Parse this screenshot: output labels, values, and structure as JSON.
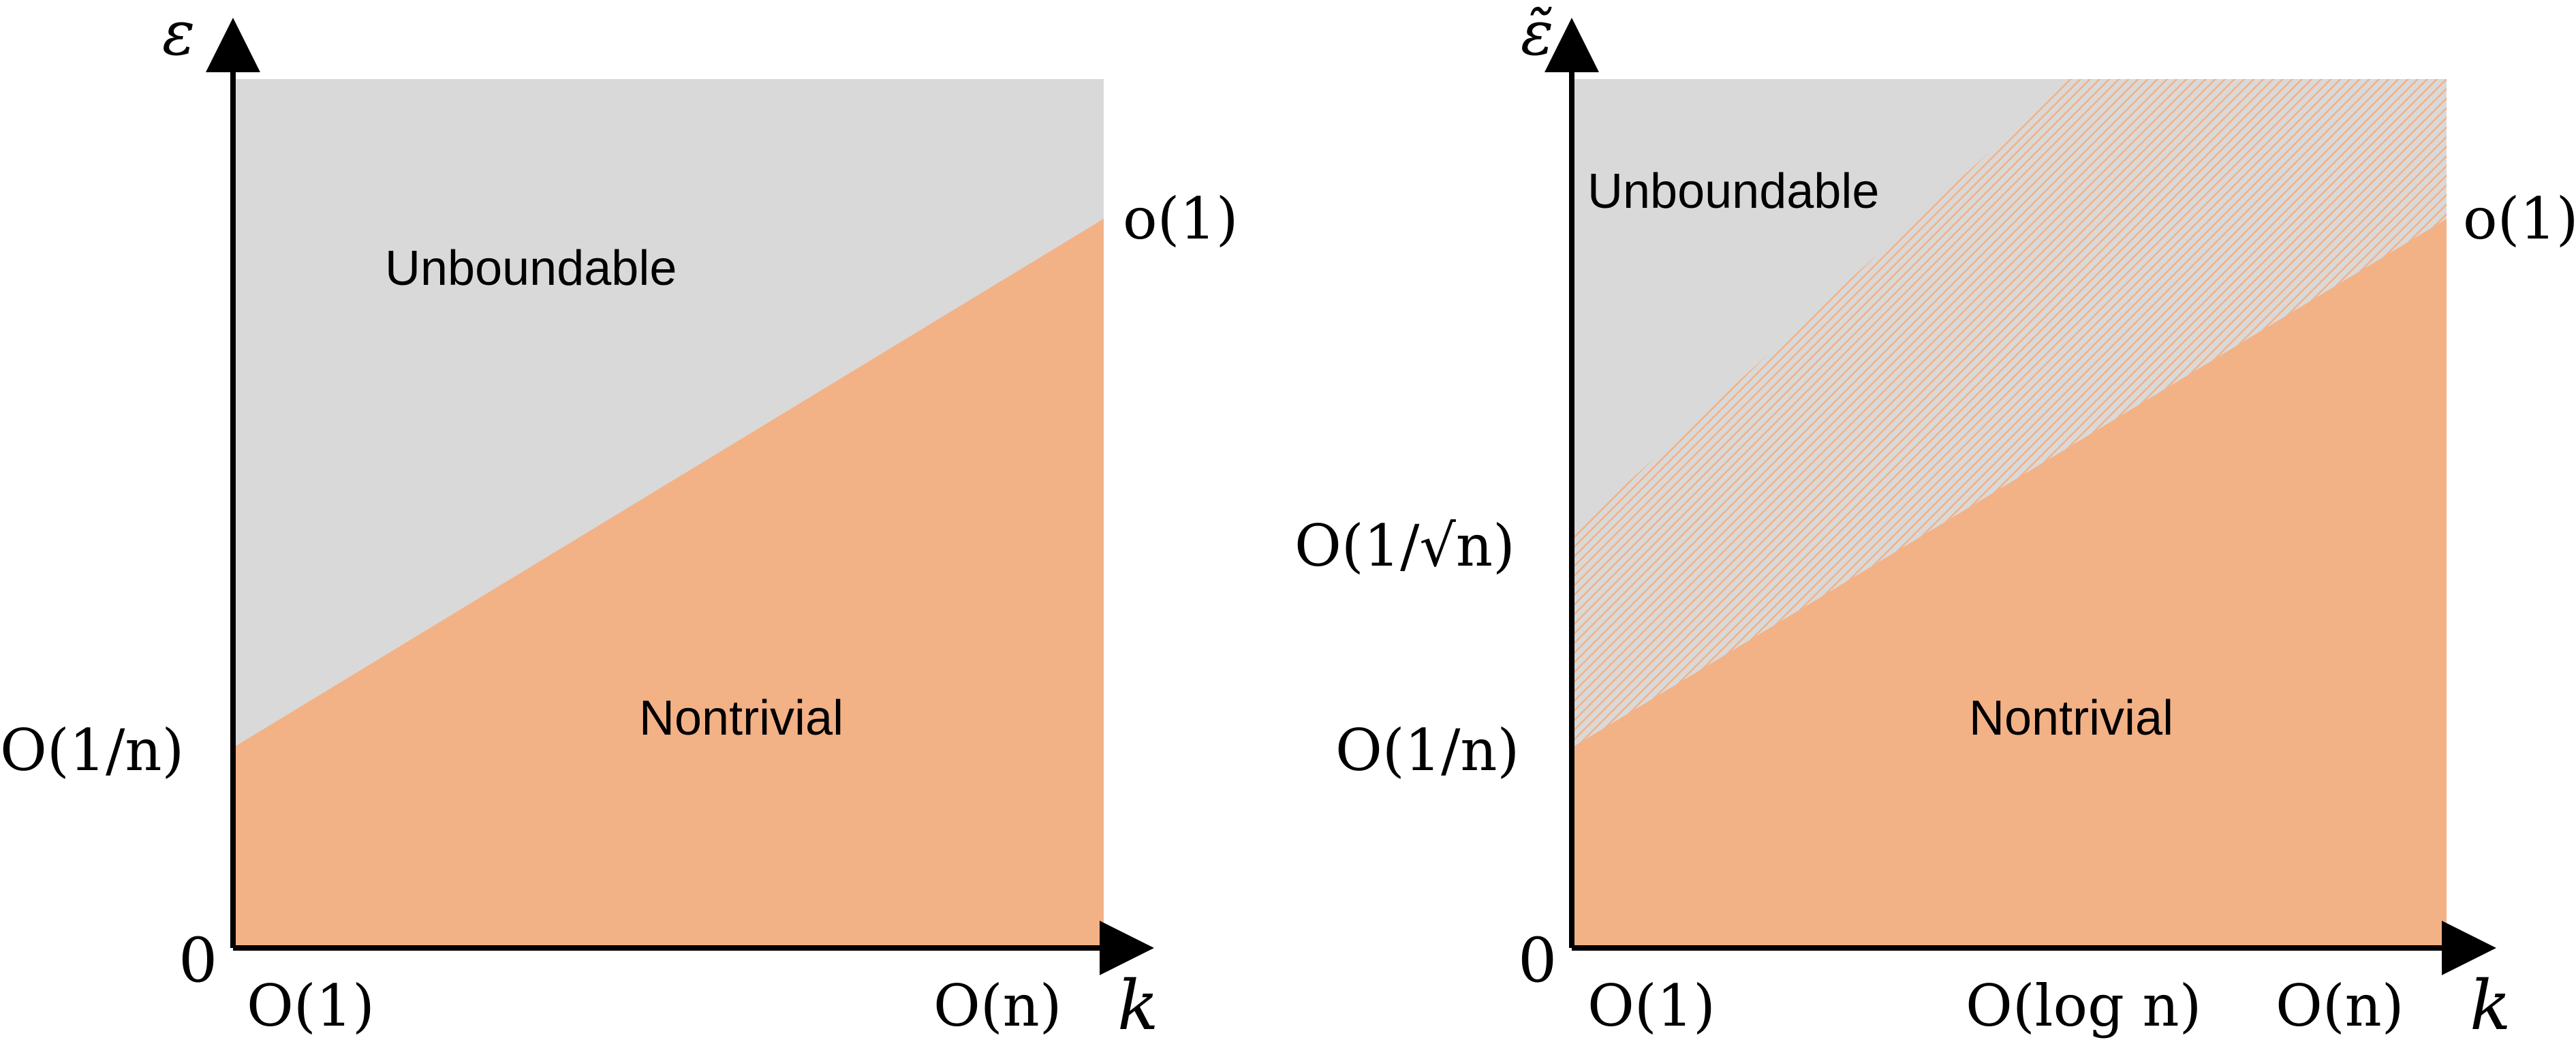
{
  "colors": {
    "unboundable": "#d9d9d9",
    "nontrivial": "#f3b186",
    "hatch": "#f3b186",
    "axis": "#000000"
  },
  "left": {
    "y_axis_label": "ε",
    "x_axis_label": "k",
    "origin_label": "0",
    "y_tick_low": "O(1/n)",
    "y_tick_high": "o(1)",
    "x_tick_low": "O(1)",
    "x_tick_high": "O(n)",
    "region_upper": "Unboundable",
    "region_lower": "Nontrivial"
  },
  "right": {
    "y_axis_label": "ε̃",
    "x_axis_label": "k",
    "origin_label": "0",
    "y_tick_low": "O(1/n)",
    "y_tick_mid": "O(1/√n)",
    "y_tick_high": "o(1)",
    "x_tick_low": "O(1)",
    "x_tick_mid": "O(log n)",
    "x_tick_high": "O(n)",
    "region_upper": "Unboundable",
    "region_lower": "Nontrivial",
    "region_hatched_icon": "diagonal-hatch-pattern"
  }
}
